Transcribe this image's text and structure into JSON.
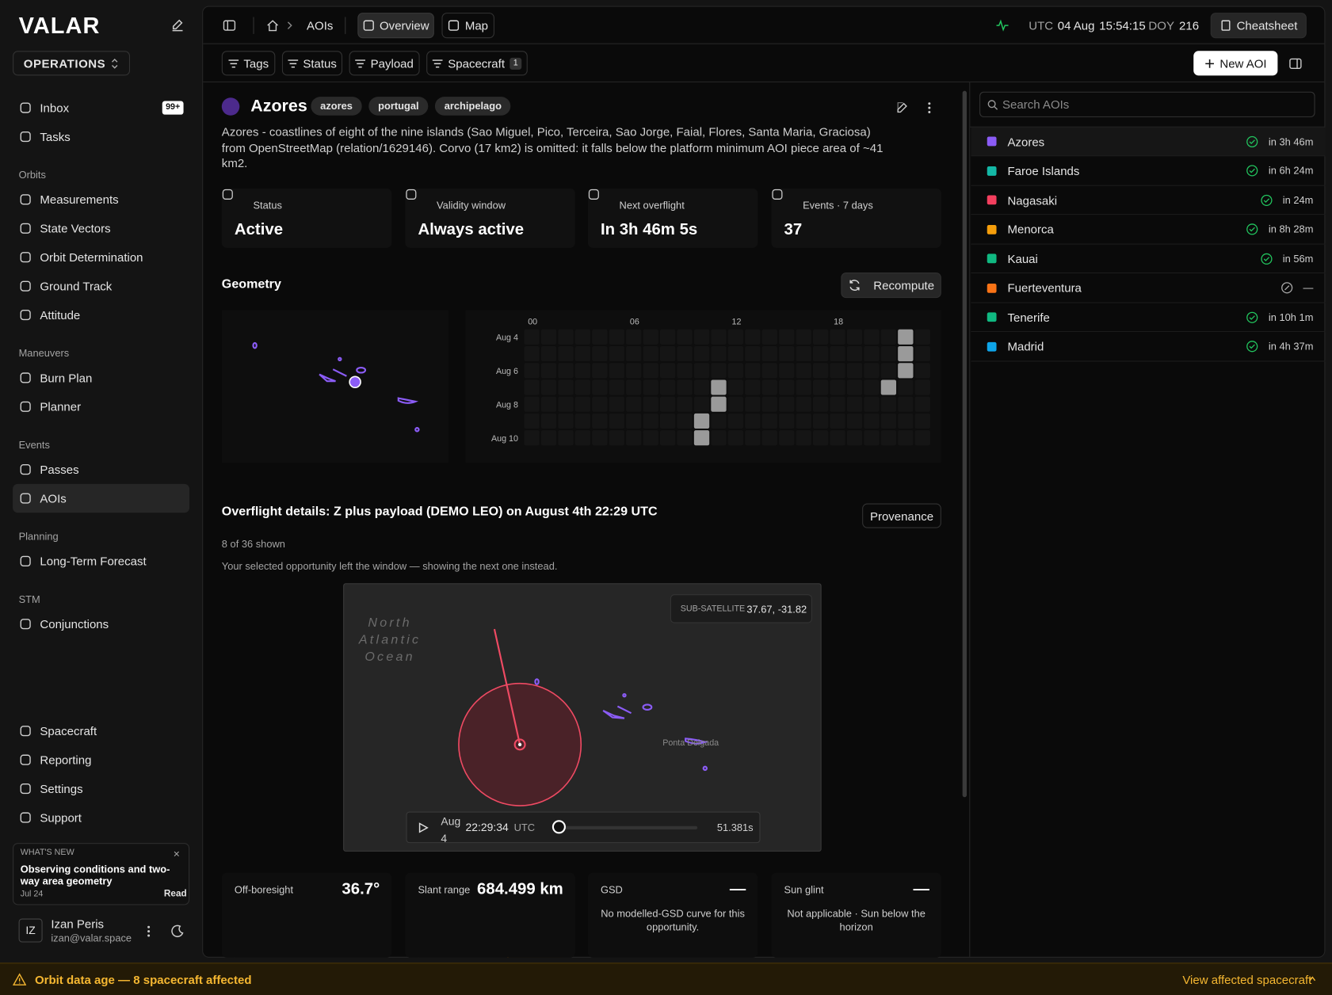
{
  "sidebar": {
    "brand": "VALAR",
    "workspace": "OPERATIONS",
    "top": [
      {
        "label": "Inbox",
        "badge": "99+"
      },
      {
        "label": "Tasks"
      }
    ],
    "sections": [
      {
        "title": "Orbits",
        "items": [
          {
            "label": "Measurements"
          },
          {
            "label": "State Vectors"
          },
          {
            "label": "Orbit Determination"
          },
          {
            "label": "Ground Track"
          },
          {
            "label": "Attitude"
          }
        ]
      },
      {
        "title": "Maneuvers",
        "items": [
          {
            "label": "Burn Plan"
          },
          {
            "label": "Planner"
          }
        ]
      },
      {
        "title": "Events",
        "items": [
          {
            "label": "Passes"
          },
          {
            "label": "AOIs",
            "active": true
          }
        ]
      },
      {
        "title": "Planning",
        "items": [
          {
            "label": "Long-Term Forecast"
          }
        ]
      },
      {
        "title": "STM",
        "items": [
          {
            "label": "Conjunctions"
          }
        ]
      }
    ],
    "bottom": [
      {
        "label": "Spacecraft"
      },
      {
        "label": "Reporting"
      },
      {
        "label": "Settings"
      },
      {
        "label": "Support"
      }
    ],
    "whats_new": {
      "label": "WHAT'S NEW",
      "title": "Observing conditions and two-way area geometry",
      "date": "Jul 24",
      "action": "Read"
    },
    "user": {
      "initials": "IZ",
      "name": "Izan Peris",
      "email": "izan@valar.space"
    }
  },
  "topbar": {
    "breadcrumb": "AOIs",
    "tabs": [
      {
        "label": "Overview",
        "active": true
      },
      {
        "label": "Map"
      }
    ],
    "clock": {
      "zone": "UTC",
      "date": "04 Aug",
      "time": "15:54:15",
      "doy_label": "DOY",
      "doy": "216"
    },
    "cheatsheet": "Cheatsheet"
  },
  "filters": {
    "items": [
      "Tags",
      "Status",
      "Payload",
      "Spacecraft"
    ],
    "spacecraft_count": 1,
    "new_button": "New AOI"
  },
  "aoi": {
    "name": "Azores",
    "color": "#4c2a8c",
    "tags": [
      "azores",
      "portugal",
      "archipelago"
    ],
    "description": "Azores - coastlines of eight of the nine islands (Sao Miguel, Pico, Terceira, Sao Jorge, Faial, Flores, Santa Maria, Graciosa) from OpenStreetMap (relation/1629146). Corvo (17 km2) is omitted: it falls below the platform minimum AOI piece area of ~41 km2.",
    "stats": [
      {
        "label": "Status",
        "value": "Active"
      },
      {
        "label": "Validity window",
        "value": "Always active"
      },
      {
        "label": "Next overflight",
        "value": "In 3h 46m 5s"
      },
      {
        "label": "Events · 7 days",
        "value": "37"
      }
    ],
    "geometry": {
      "title": "Geometry",
      "recompute": "Recompute",
      "heatmap": {
        "hours": [
          "00",
          null,
          null,
          null,
          null,
          null,
          "06",
          null,
          null,
          null,
          null,
          null,
          "12",
          null,
          null,
          null,
          null,
          null,
          "18",
          null,
          null,
          null,
          null,
          null
        ],
        "rows": [
          "Aug 4",
          null,
          "Aug 6",
          null,
          "Aug 8",
          null,
          "Aug 10"
        ],
        "passes": [
          [
            0,
            22
          ],
          [
            1,
            22
          ],
          [
            2,
            22
          ],
          [
            3,
            11
          ],
          [
            3,
            21
          ],
          [
            4,
            11
          ],
          [
            5,
            10
          ],
          [
            6,
            10
          ]
        ]
      }
    },
    "overflight": {
      "title": "Overflight details: Z plus payload (DEMO LEO) on August 4th 22:29 UTC",
      "provenance": "Provenance",
      "count": "8 of 36 shown",
      "note": "Your selected opportunity left the window — showing the next one instead.",
      "map": {
        "ocean": "North Atlantic Ocean",
        "subsat_label": "SUB-SATELLITE",
        "subsat_value": "37.67, -31.82",
        "place": "Ponta Delgada"
      },
      "player": {
        "date": "Aug 4",
        "time": "22:29:34",
        "zone": "UTC",
        "duration": "51.381s"
      },
      "metrics": [
        {
          "label": "Off-boresight",
          "value": "36.7°"
        },
        {
          "label": "Slant range",
          "value": "684.499 km"
        },
        {
          "label": "GSD",
          "value": "—",
          "note": "No modelled-GSD curve for this opportunity."
        },
        {
          "label": "Sun glint",
          "value": "—",
          "note": "Not applicable · Sun below the horizon"
        }
      ]
    }
  },
  "aoi_list": {
    "search_placeholder": "Search AOIs",
    "items": [
      {
        "name": "Azores",
        "color": "#8b5cf6",
        "eta": "in 3h 46m",
        "check": true,
        "selected": true
      },
      {
        "name": "Faroe Islands",
        "color": "#14b8a6",
        "eta": "in 6h 24m",
        "check": true
      },
      {
        "name": "Nagasaki",
        "color": "#f43f5e",
        "eta": "in 24m",
        "check": true
      },
      {
        "name": "Menorca",
        "color": "#f59e0b",
        "eta": "in 8h 28m",
        "check": true
      },
      {
        "name": "Kauai",
        "color": "#10b981",
        "eta": "in 56m",
        "check": true
      },
      {
        "name": "Fuerteventura",
        "color": "#f97316",
        "eta": "—",
        "check": false
      },
      {
        "name": "Tenerife",
        "color": "#10b981",
        "eta": "in 10h 1m",
        "check": true
      },
      {
        "name": "Madrid",
        "color": "#0ea5e9",
        "eta": "in 4h 37m",
        "check": true
      }
    ]
  },
  "banner": {
    "message": "Orbit data age — 8 spacecraft affected",
    "action": "View affected spacecraft"
  }
}
